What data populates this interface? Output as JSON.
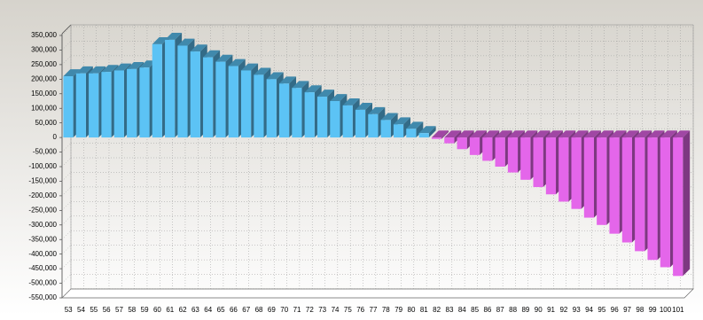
{
  "chart_data": {
    "type": "bar3d",
    "categories": [
      "53",
      "54",
      "55",
      "56",
      "57",
      "58",
      "59",
      "60",
      "61",
      "62",
      "63",
      "64",
      "65",
      "66",
      "67",
      "68",
      "69",
      "70",
      "71",
      "72",
      "73",
      "74",
      "75",
      "76",
      "77",
      "78",
      "79",
      "80",
      "81",
      "82",
      "83",
      "84",
      "85",
      "86",
      "87",
      "88",
      "89",
      "90",
      "91",
      "92",
      "93",
      "94",
      "95",
      "96",
      "97",
      "98",
      "99",
      "100",
      "101"
    ],
    "values": [
      210000,
      220000,
      220000,
      225000,
      230000,
      235000,
      240000,
      320000,
      335000,
      315000,
      295000,
      275000,
      260000,
      245000,
      230000,
      215000,
      200000,
      185000,
      170000,
      155000,
      140000,
      125000,
      110000,
      95000,
      80000,
      60000,
      45000,
      30000,
      15000,
      -5000,
      -20000,
      -40000,
      -60000,
      -80000,
      -100000,
      -120000,
      -145000,
      -170000,
      -195000,
      -220000,
      -245000,
      -275000,
      -300000,
      -330000,
      -360000,
      -390000,
      -420000,
      -445000,
      -475000
    ],
    "positive_color": "#5cc3f5",
    "negative_color": "#e466ea",
    "ylim": [
      -550000,
      350000
    ],
    "yticks": [
      {
        "value": -550000,
        "label": "-550,000"
      },
      {
        "value": -500000,
        "label": "-500,000"
      },
      {
        "value": -450000,
        "label": "-450,000"
      },
      {
        "value": -400000,
        "label": "-400,000"
      },
      {
        "value": -350000,
        "label": "-350,000"
      },
      {
        "value": -300000,
        "label": "-300,000"
      },
      {
        "value": -250000,
        "label": "-250,000"
      },
      {
        "value": -200000,
        "label": "-200,000"
      },
      {
        "value": -150000,
        "label": "-150,000"
      },
      {
        "value": -100000,
        "label": "-100,000"
      },
      {
        "value": -50000,
        "label": "-50,000"
      },
      0,
      {
        "value": 50000,
        "label": "50,000"
      },
      {
        "value": 100000,
        "label": "100,000"
      },
      {
        "value": 150000,
        "label": "150,000"
      },
      {
        "value": 200000,
        "label": "200,000"
      },
      {
        "value": 250000,
        "label": "250,000"
      },
      {
        "value": 300000,
        "label": "300,000"
      },
      {
        "value": 350000,
        "label": "350,000"
      }
    ],
    "grid": true
  }
}
